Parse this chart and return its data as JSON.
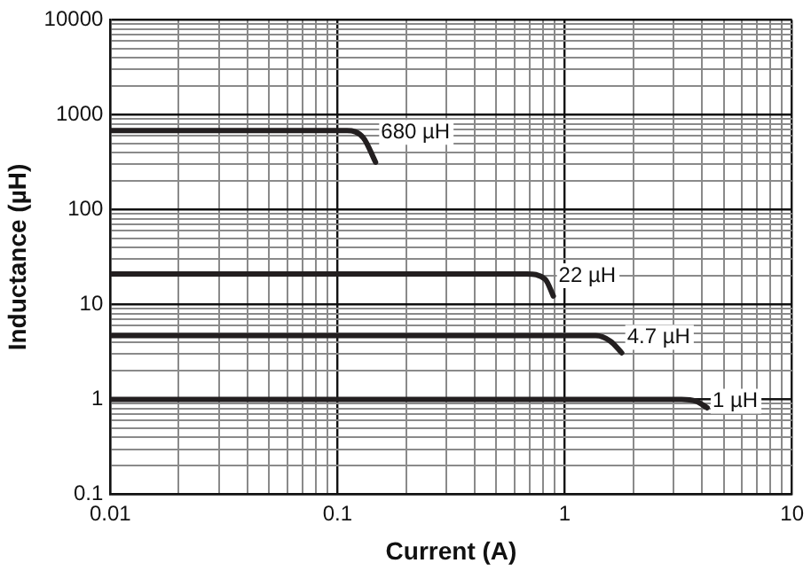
{
  "chart_data": {
    "type": "line",
    "xlabel": "Current (A)",
    "ylabel": "Inductance (µH)",
    "log": "xy",
    "grid": true,
    "legend": false,
    "marker": "none",
    "line_style": "solid",
    "xlim": [
      0.01,
      10
    ],
    "ylim": [
      0.1,
      10000
    ],
    "xticks": [
      0.01,
      {
        "value": 0.02,
        "label": null
      },
      {
        "value": 0.03,
        "label": null
      },
      {
        "value": 0.04,
        "label": null
      },
      {
        "value": 0.05,
        "label": null
      },
      {
        "value": 0.06,
        "label": null
      },
      {
        "value": 0.07,
        "label": null
      },
      {
        "value": 0.08,
        "label": null
      },
      {
        "value": 0.09,
        "label": null
      },
      0.1,
      {
        "value": 0.2,
        "label": null
      },
      {
        "value": 0.3,
        "label": null
      },
      {
        "value": 0.4,
        "label": null
      },
      {
        "value": 0.5,
        "label": null
      },
      {
        "value": 0.6,
        "label": null
      },
      {
        "value": 0.7,
        "label": null
      },
      {
        "value": 0.8,
        "label": null
      },
      {
        "value": 0.9,
        "label": null
      },
      1,
      {
        "value": 2,
        "label": null
      },
      {
        "value": 3,
        "label": null
      },
      {
        "value": 4,
        "label": null
      },
      {
        "value": 5,
        "label": null
      },
      {
        "value": 6,
        "label": null
      },
      {
        "value": 7,
        "label": null
      },
      {
        "value": 8,
        "label": null
      },
      {
        "value": 9,
        "label": null
      },
      10
    ],
    "yticks": [
      0.1,
      {
        "value": 0.2,
        "label": null
      },
      {
        "value": 0.3,
        "label": null
      },
      {
        "value": 0.4,
        "label": null
      },
      {
        "value": 0.5,
        "label": null
      },
      {
        "value": 0.6,
        "label": null
      },
      {
        "value": 0.7,
        "label": null
      },
      {
        "value": 0.8,
        "label": null
      },
      {
        "value": 0.9,
        "label": null
      },
      1,
      {
        "value": 2,
        "label": null
      },
      {
        "value": 3,
        "label": null
      },
      {
        "value": 4,
        "label": null
      },
      {
        "value": 5,
        "label": null
      },
      {
        "value": 6,
        "label": null
      },
      {
        "value": 7,
        "label": null
      },
      {
        "value": 8,
        "label": null
      },
      {
        "value": 9,
        "label": null
      },
      10,
      {
        "value": 20,
        "label": null
      },
      {
        "value": 30,
        "label": null
      },
      {
        "value": 40,
        "label": null
      },
      {
        "value": 50,
        "label": null
      },
      {
        "value": 60,
        "label": null
      },
      {
        "value": 70,
        "label": null
      },
      {
        "value": 80,
        "label": null
      },
      {
        "value": 90,
        "label": null
      },
      100,
      {
        "value": 200,
        "label": null
      },
      {
        "value": 300,
        "label": null
      },
      {
        "value": 400,
        "label": null
      },
      {
        "value": 500,
        "label": null
      },
      {
        "value": 600,
        "label": null
      },
      {
        "value": 700,
        "label": null
      },
      {
        "value": 800,
        "label": null
      },
      {
        "value": 900,
        "label": null
      },
      1000,
      {
        "value": 2000,
        "label": null
      },
      {
        "value": 3000,
        "label": null
      },
      {
        "value": 4000,
        "label": null
      },
      {
        "value": 5000,
        "label": null
      },
      {
        "value": 6000,
        "label": null
      },
      {
        "value": 7000,
        "label": null
      },
      {
        "value": 8000,
        "label": null
      },
      {
        "value": 9000,
        "label": null
      },
      10000
    ],
    "series": [
      {
        "name": "680 µH",
        "color": "#231f20",
        "x": [
          0.01,
          0.11,
          0.13,
          0.147
        ],
        "values": [
          680,
          680,
          570,
          316
        ]
      },
      {
        "name": "22 µH",
        "color": "#231f20",
        "x": [
          0.01,
          0.68,
          0.82,
          0.89
        ],
        "values": [
          21,
          21,
          18.5,
          12.3
        ]
      },
      {
        "name": "4.7 µH",
        "color": "#231f20",
        "x": [
          0.01,
          1.37,
          1.59,
          1.78
        ],
        "values": [
          4.7,
          4.7,
          4.1,
          3.1
        ]
      },
      {
        "name": "1 µH",
        "color": "#231f20",
        "x": [
          0.01,
          3.26,
          3.77,
          4.23
        ],
        "values": [
          1,
          1,
          0.96,
          0.82
        ]
      }
    ]
  }
}
